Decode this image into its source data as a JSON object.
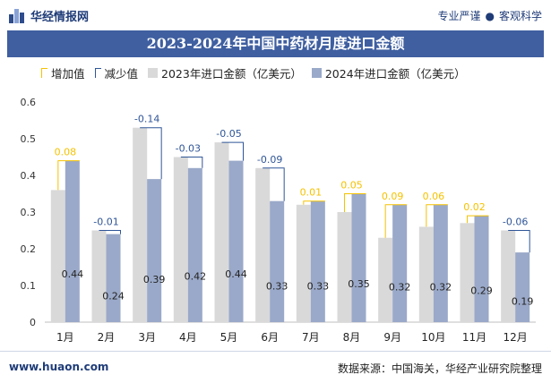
{
  "header": {
    "brand": "华经情报网",
    "tagline_left": "专业严谨",
    "tagline_sep": "●",
    "tagline_right": "客观科学"
  },
  "title": "2023-2024年中国中药材月度进口金额",
  "legend": {
    "increase": "增加值",
    "decrease": "减少值",
    "series_2023": "2023年进口金额（亿美元）",
    "series_2024": "2024年进口金额（亿美元）"
  },
  "colors": {
    "title_bg": "#3f5fa0",
    "bar_2023": "#d9d9d9",
    "bar_2024": "#9aa9c9",
    "increase": "#f5c200",
    "decrease": "#2f5597"
  },
  "chart_data": {
    "type": "bar",
    "title": "2023-2024年中国中药材月度进口金额",
    "categories": [
      "1月",
      "2月",
      "3月",
      "4月",
      "5月",
      "6月",
      "7月",
      "8月",
      "9月",
      "10月",
      "11月",
      "12月"
    ],
    "series": [
      {
        "name": "2023年进口金额（亿美元）",
        "values": [
          0.36,
          0.25,
          0.53,
          0.45,
          0.49,
          0.42,
          0.32,
          0.3,
          0.23,
          0.26,
          0.27,
          0.25
        ]
      },
      {
        "name": "2024年进口金额（亿美元）",
        "values": [
          0.44,
          0.24,
          0.39,
          0.42,
          0.44,
          0.33,
          0.33,
          0.35,
          0.32,
          0.32,
          0.29,
          0.19
        ]
      }
    ],
    "change_labels": [
      "0.08",
      "-0.01",
      "-0.14",
      "-0.03",
      "-0.05",
      "-0.09",
      "0.01",
      "0.05",
      "0.09",
      "0.06",
      "0.02",
      "-0.06"
    ],
    "value_labels_2024": [
      "0.44",
      "0.24",
      "0.39",
      "0.42",
      "0.44",
      "0.33",
      "0.33",
      "0.35",
      "0.32",
      "0.32",
      "0.29",
      "0.19"
    ],
    "ylim": [
      0,
      0.6
    ],
    "yticks": [
      "0",
      "0.1",
      "0.2",
      "0.3",
      "0.4",
      "0.5",
      "0.6"
    ],
    "grid": false,
    "legend_position": "top"
  },
  "footer": {
    "website": "www.huaon.com",
    "source": "数据来源：中国海关，华经产业研究院整理"
  }
}
